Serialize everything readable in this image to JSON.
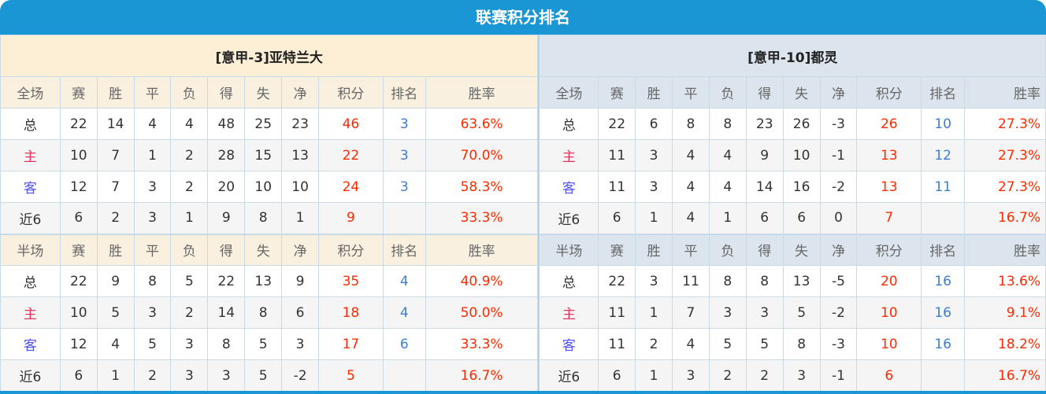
{
  "title": "联赛积分排名",
  "colors": {
    "header_bg": "#1a96d4",
    "points": "#ff2a00",
    "rank": "#3a7fd5",
    "home_label": "#e8305c",
    "away_label": "#5050ff"
  },
  "columns_full": [
    "全场",
    "赛",
    "胜",
    "平",
    "负",
    "得",
    "失",
    "净",
    "积分",
    "排名",
    "胜率"
  ],
  "columns_half": [
    "半场",
    "赛",
    "胜",
    "平",
    "负",
    "得",
    "失",
    "净",
    "积分",
    "排名",
    "胜率"
  ],
  "teams": [
    {
      "name": "[意甲-3]亚特兰大",
      "full": [
        [
          "总",
          "22",
          "14",
          "4",
          "4",
          "48",
          "25",
          "23",
          "46",
          "3",
          "63.6%"
        ],
        [
          "主",
          "10",
          "7",
          "1",
          "2",
          "28",
          "15",
          "13",
          "22",
          "3",
          "70.0%"
        ],
        [
          "客",
          "12",
          "7",
          "3",
          "2",
          "20",
          "10",
          "10",
          "24",
          "3",
          "58.3%"
        ],
        [
          "近6",
          "6",
          "2",
          "3",
          "1",
          "9",
          "8",
          "1",
          "9",
          "",
          "33.3%"
        ]
      ],
      "half": [
        [
          "总",
          "22",
          "9",
          "8",
          "5",
          "22",
          "13",
          "9",
          "35",
          "4",
          "40.9%"
        ],
        [
          "主",
          "10",
          "5",
          "3",
          "2",
          "14",
          "8",
          "6",
          "18",
          "4",
          "50.0%"
        ],
        [
          "客",
          "12",
          "4",
          "5",
          "3",
          "8",
          "5",
          "3",
          "17",
          "6",
          "33.3%"
        ],
        [
          "近6",
          "6",
          "1",
          "2",
          "3",
          "3",
          "5",
          "-2",
          "5",
          "",
          "16.7%"
        ]
      ]
    },
    {
      "name": "[意甲-10]都灵",
      "full": [
        [
          "总",
          "22",
          "6",
          "8",
          "8",
          "23",
          "26",
          "-3",
          "26",
          "10",
          "27.3%"
        ],
        [
          "主",
          "11",
          "3",
          "4",
          "4",
          "9",
          "10",
          "-1",
          "13",
          "12",
          "27.3%"
        ],
        [
          "客",
          "11",
          "3",
          "4",
          "4",
          "14",
          "16",
          "-2",
          "13",
          "11",
          "27.3%"
        ],
        [
          "近6",
          "6",
          "1",
          "4",
          "1",
          "6",
          "6",
          "0",
          "7",
          "",
          "16.7%"
        ]
      ],
      "half": [
        [
          "总",
          "22",
          "3",
          "11",
          "8",
          "8",
          "13",
          "-5",
          "20",
          "16",
          "13.6%"
        ],
        [
          "主",
          "11",
          "1",
          "7",
          "3",
          "3",
          "5",
          "-2",
          "10",
          "16",
          "9.1%"
        ],
        [
          "客",
          "11",
          "2",
          "4",
          "5",
          "5",
          "8",
          "-3",
          "10",
          "16",
          "18.2%"
        ],
        [
          "近6",
          "6",
          "1",
          "3",
          "2",
          "2",
          "3",
          "-1",
          "6",
          "",
          "16.7%"
        ]
      ]
    }
  ]
}
